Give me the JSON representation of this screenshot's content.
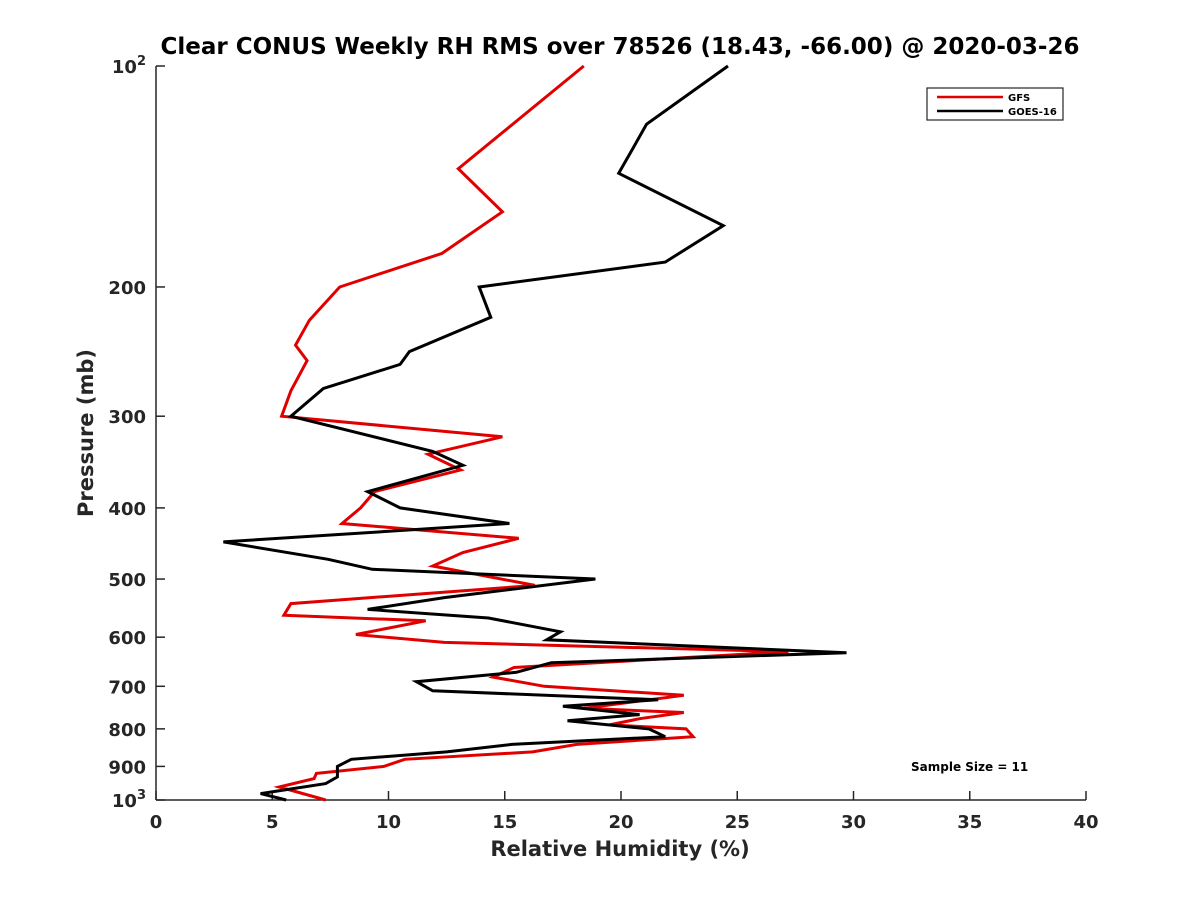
{
  "chart_data": {
    "type": "line",
    "title": "Clear CONUS Weekly RH RMS over 78526 (18.43, -66.00) @ 2020-03-26",
    "xlabel": "Relative Humidity (%)",
    "ylabel": "Pressure (mb)",
    "xlim": [
      0,
      40
    ],
    "ylim": [
      100,
      1000
    ],
    "y_scale": "log",
    "y_reversed": true,
    "x_ticks": [
      0,
      5,
      10,
      15,
      20,
      25,
      30,
      35,
      40
    ],
    "y_ticks": [
      {
        "value": 100,
        "base": "10",
        "exp": "2"
      },
      {
        "value": 200,
        "label": "200"
      },
      {
        "value": 300,
        "label": "300"
      },
      {
        "value": 400,
        "label": "400"
      },
      {
        "value": 500,
        "label": "500"
      },
      {
        "value": 600,
        "label": "600"
      },
      {
        "value": 700,
        "label": "700"
      },
      {
        "value": 800,
        "label": "800"
      },
      {
        "value": 900,
        "label": "900"
      },
      {
        "value": 1000,
        "base": "10",
        "exp": "3"
      }
    ],
    "grid": false,
    "legend_position": "top-right",
    "series": [
      {
        "name": "GFS",
        "color": "#e00000",
        "points": [
          [
            18.4,
            100
          ],
          [
            13.0,
            138
          ],
          [
            14.9,
            158
          ],
          [
            12.3,
            180
          ],
          [
            7.9,
            200
          ],
          [
            6.6,
            222
          ],
          [
            6.0,
            240
          ],
          [
            6.5,
            252
          ],
          [
            5.8,
            277
          ],
          [
            5.4,
            300
          ],
          [
            14.9,
            320
          ],
          [
            11.7,
            338
          ],
          [
            13.1,
            355
          ],
          [
            9.4,
            380
          ],
          [
            8.8,
            400
          ],
          [
            8.0,
            420
          ],
          [
            15.6,
            440
          ],
          [
            13.2,
            460
          ],
          [
            11.9,
            480
          ],
          [
            16.3,
            510
          ],
          [
            5.8,
            540
          ],
          [
            5.5,
            560
          ],
          [
            11.6,
            570
          ],
          [
            8.6,
            595
          ],
          [
            12.4,
            610
          ],
          [
            27.2,
            628
          ],
          [
            15.4,
            660
          ],
          [
            14.5,
            680
          ],
          [
            16.7,
            700
          ],
          [
            22.7,
            720
          ],
          [
            18.4,
            750
          ],
          [
            22.7,
            760
          ],
          [
            20.8,
            775
          ],
          [
            19.5,
            790
          ],
          [
            22.8,
            800
          ],
          [
            23.1,
            820
          ],
          [
            18.1,
            840
          ],
          [
            16.2,
            860
          ],
          [
            10.7,
            880
          ],
          [
            9.8,
            900
          ],
          [
            6.9,
            920
          ],
          [
            6.8,
            935
          ],
          [
            5.3,
            960
          ],
          [
            7.3,
            1000
          ]
        ]
      },
      {
        "name": "GOES-16",
        "color": "#000000",
        "points": [
          [
            24.6,
            100
          ],
          [
            21.1,
            120
          ],
          [
            20.6,
            128
          ],
          [
            19.9,
            140
          ],
          [
            24.4,
            165
          ],
          [
            21.9,
            185
          ],
          [
            13.9,
            200
          ],
          [
            14.4,
            220
          ],
          [
            10.9,
            245
          ],
          [
            10.5,
            255
          ],
          [
            7.2,
            275
          ],
          [
            5.8,
            300
          ],
          [
            11.9,
            335
          ],
          [
            13.2,
            350
          ],
          [
            9.1,
            380
          ],
          [
            10.5,
            400
          ],
          [
            15.2,
            420
          ],
          [
            2.9,
            445
          ],
          [
            7.4,
            470
          ],
          [
            9.3,
            485
          ],
          [
            18.9,
            500
          ],
          [
            12.4,
            530
          ],
          [
            9.1,
            550
          ],
          [
            14.3,
            565
          ],
          [
            17.4,
            590
          ],
          [
            16.8,
            605
          ],
          [
            29.7,
            630
          ],
          [
            17.0,
            650
          ],
          [
            15.5,
            670
          ],
          [
            11.2,
            690
          ],
          [
            11.9,
            710
          ],
          [
            21.6,
            730
          ],
          [
            17.5,
            745
          ],
          [
            20.8,
            765
          ],
          [
            17.7,
            780
          ],
          [
            21.2,
            800
          ],
          [
            21.9,
            820
          ],
          [
            15.3,
            840
          ],
          [
            12.5,
            860
          ],
          [
            8.4,
            880
          ],
          [
            7.8,
            900
          ],
          [
            7.8,
            930
          ],
          [
            7.3,
            950
          ],
          [
            4.5,
            980
          ],
          [
            5.6,
            1000
          ]
        ]
      }
    ],
    "annotations": [
      {
        "text": "Sample Size = 11"
      }
    ]
  }
}
